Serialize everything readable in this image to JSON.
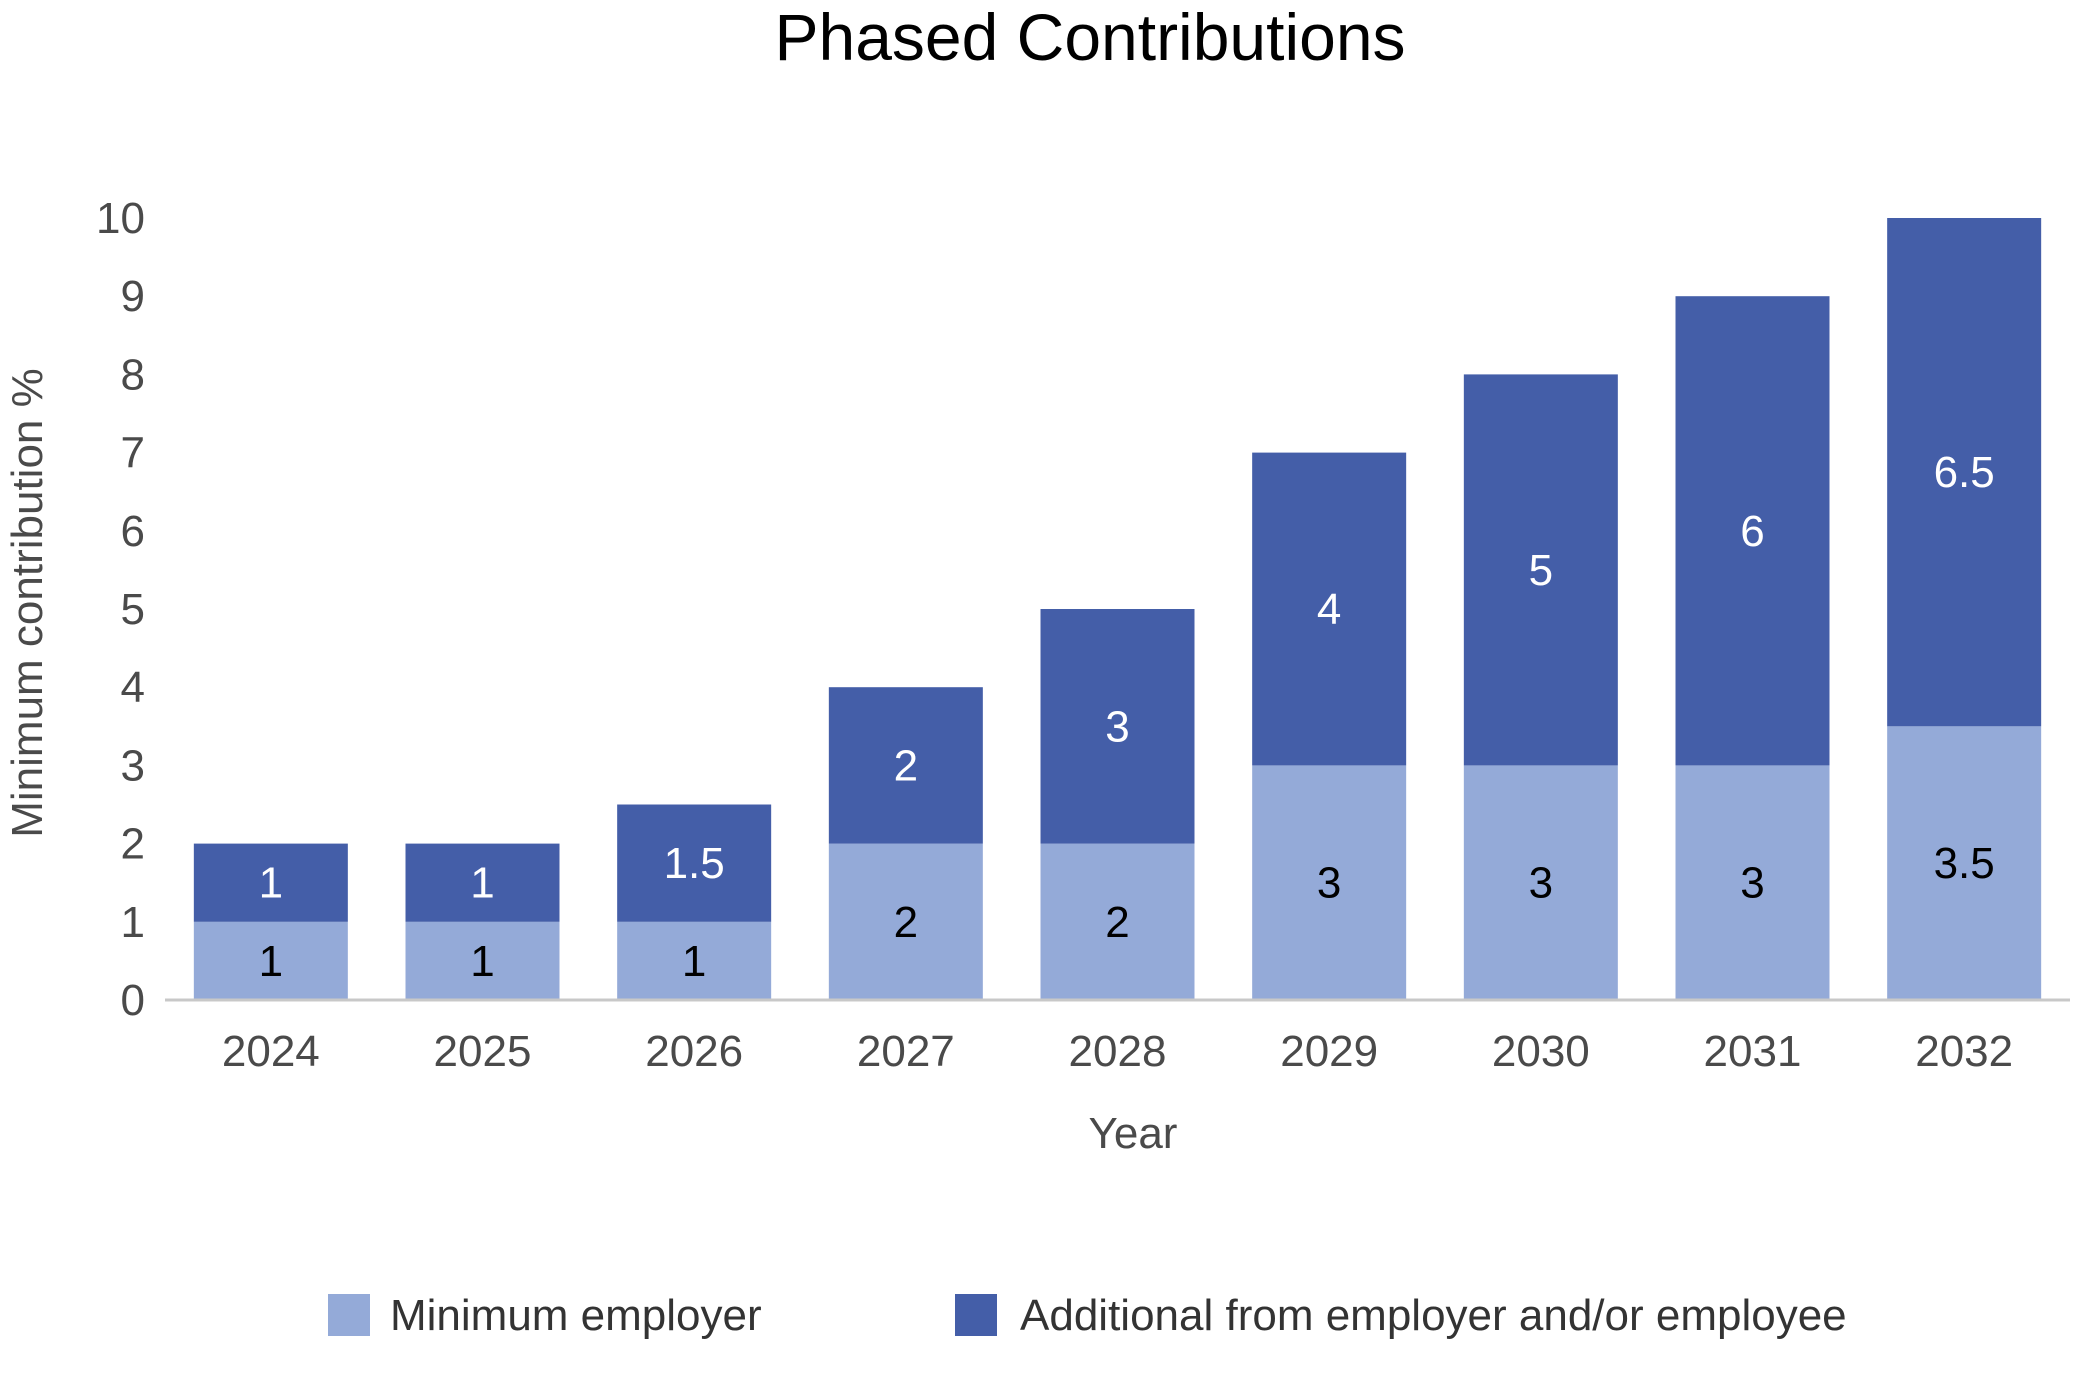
{
  "chart_data": {
    "type": "bar",
    "stacked": true,
    "title": "Phased Contributions",
    "xlabel": "Year",
    "ylabel": "Minimum contribution %",
    "categories": [
      "2024",
      "2025",
      "2026",
      "2027",
      "2028",
      "2029",
      "2030",
      "2031",
      "2032"
    ],
    "series": [
      {
        "name": "Minimum employer",
        "values": [
          1,
          1,
          1,
          2,
          2,
          3,
          3,
          3,
          3.5
        ],
        "color": "#94aad8",
        "label_color": "#000000"
      },
      {
        "name": "Additional from employer and/or employee",
        "values": [
          1,
          1,
          1.5,
          2,
          3,
          4,
          5,
          6,
          6.5
        ],
        "color": "#445ea8",
        "label_color": "#ffffff"
      }
    ],
    "ylim": [
      0,
      10
    ],
    "yticks": [
      0,
      1,
      2,
      3,
      4,
      5,
      6,
      7,
      8,
      9,
      10
    ],
    "grid": false,
    "legend_position": "bottom",
    "axis_color": "#c8c8c8"
  }
}
